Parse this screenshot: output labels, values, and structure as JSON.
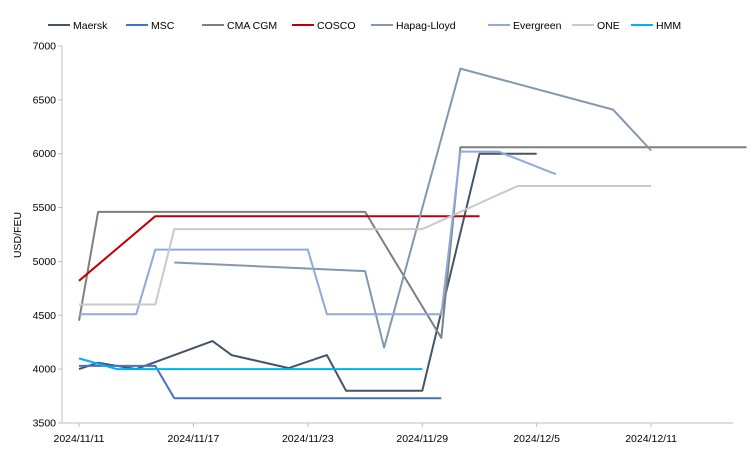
{
  "chart_data": {
    "type": "line",
    "title": "",
    "xlabel": "",
    "ylabel": "USD/FEU",
    "ylim": [
      3500,
      7000
    ],
    "yticks": [
      3500,
      4000,
      4500,
      5000,
      5500,
      6000,
      6500,
      7000
    ],
    "xlim": [
      "2024-11-11",
      "2024-12-17"
    ],
    "xticks": [
      "2024-11-11",
      "2024-11-17",
      "2024-11-23",
      "2024-11-29",
      "2024-12-05",
      "2024-12-11"
    ],
    "xtick_labels": [
      "2024/11/11",
      "2024/11/17",
      "2024/11/23",
      "2024/11/29",
      "2024/12/5",
      "2024/12/11"
    ],
    "grid": false,
    "legend_position": "top",
    "series": [
      {
        "name": "Maersk",
        "color": "#44546a",
        "points": [
          [
            "2024-11-11",
            4000
          ],
          [
            "2024-11-12",
            4060
          ],
          [
            "2024-11-14",
            4000
          ],
          [
            "2024-11-18",
            4260
          ],
          [
            "2024-11-19",
            4130
          ],
          [
            "2024-11-22",
            4010
          ],
          [
            "2024-11-24",
            4130
          ],
          [
            "2024-11-25",
            3800
          ],
          [
            "2024-11-29",
            3800
          ],
          [
            "2024-12-02",
            6000
          ],
          [
            "2024-12-05",
            6000
          ]
        ]
      },
      {
        "name": "MSC",
        "color": "#4472c4",
        "points": [
          [
            "2024-11-11",
            4030
          ],
          [
            "2024-11-15",
            4030
          ],
          [
            "2024-11-16",
            3730
          ],
          [
            "2024-11-30",
            3730
          ]
        ]
      },
      {
        "name": "CMA CGM",
        "color": "#7f7f7f",
        "points": [
          [
            "2024-11-11",
            4450
          ],
          [
            "2024-11-12",
            5460
          ],
          [
            "2024-11-26",
            5460
          ],
          [
            "2024-11-30",
            4290
          ],
          [
            "2024-12-01",
            6060
          ],
          [
            "2024-12-16",
            6060
          ]
        ]
      },
      {
        "name": "COSCO",
        "color": "#c00000",
        "points": [
          [
            "2024-11-11",
            4820
          ],
          [
            "2024-11-15",
            5420
          ],
          [
            "2024-12-02",
            5420
          ]
        ]
      },
      {
        "name": "Hapag-Lloyd",
        "color": "#8497b0",
        "points": [
          [
            "2024-11-16",
            4990
          ],
          [
            "2024-11-26",
            4910
          ],
          [
            "2024-11-27",
            4200
          ],
          [
            "2024-12-01",
            6790
          ],
          [
            "2024-12-09",
            6410
          ],
          [
            "2024-12-11",
            6030
          ]
        ]
      },
      {
        "name": "Evergreen",
        "color": "#8eaadb",
        "points": [
          [
            "2024-11-11",
            4510
          ],
          [
            "2024-11-14",
            4510
          ],
          [
            "2024-11-15",
            5110
          ],
          [
            "2024-11-23",
            5110
          ],
          [
            "2024-11-24",
            4510
          ],
          [
            "2024-11-30",
            4510
          ],
          [
            "2024-12-01",
            6020
          ],
          [
            "2024-12-03",
            6020
          ],
          [
            "2024-12-06",
            5810
          ]
        ]
      },
      {
        "name": "ONE",
        "color": "#c9c9c9",
        "points": [
          [
            "2024-11-11",
            4600
          ],
          [
            "2024-11-15",
            4600
          ],
          [
            "2024-11-16",
            5300
          ],
          [
            "2024-11-29",
            5300
          ],
          [
            "2024-12-04",
            5700
          ],
          [
            "2024-12-11",
            5700
          ]
        ]
      },
      {
        "name": "HMM",
        "color": "#00b0f0",
        "points": [
          [
            "2024-11-11",
            4100
          ],
          [
            "2024-11-13",
            4000
          ],
          [
            "2024-11-29",
            4000
          ]
        ]
      }
    ]
  }
}
